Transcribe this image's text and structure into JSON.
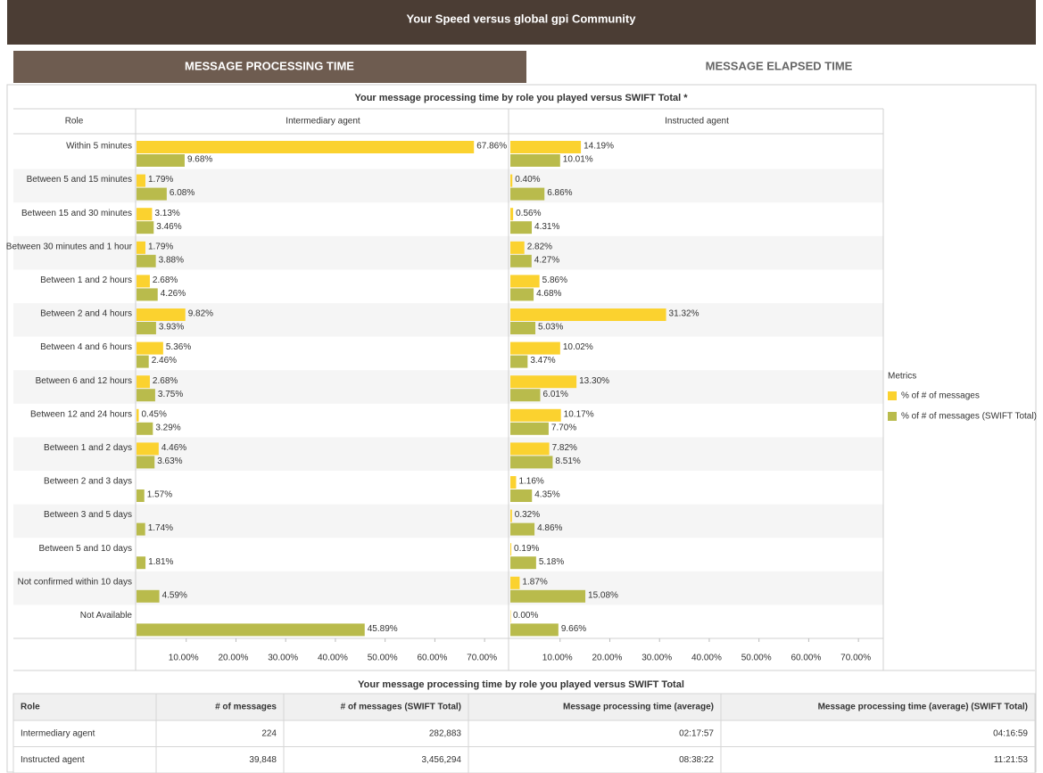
{
  "header": {
    "title": "Your Speed versus global gpi Community"
  },
  "tabs": [
    "MESSAGE PROCESSING TIME",
    "MESSAGE ELAPSED TIME"
  ],
  "chart_data": {
    "type": "bar",
    "orientation": "horizontal",
    "title": "Your message processing time by role you played versus SWIFT Total *",
    "category_label": "Role",
    "categories": [
      "Within 5 minutes",
      "Between 5 and 15 minutes",
      "Between 15 and 30 minutes",
      "Between 30 minutes and 1 hour",
      "Between 1 and 2 hours",
      "Between 2 and 4 hours",
      "Between 4 and 6 hours",
      "Between 6 and 12 hours",
      "Between 12 and 24 hours",
      "Between 1 and 2 days",
      "Between 2 and 3 days",
      "Between 3 and 5 days",
      "Between 5 and 10 days",
      "Not confirmed within 10 days",
      "Not Available"
    ],
    "legend_title": "Metrics",
    "series": [
      {
        "name": "% of # of messages",
        "color": "#fbd22f"
      },
      {
        "name": "% of # of messages (SWIFT Total)",
        "color": "#b9bb4c"
      }
    ],
    "xlim": [
      0,
      75
    ],
    "xticks": [
      {
        "value": 10,
        "label": "10.00%"
      },
      {
        "value": 20,
        "label": "20.00%"
      },
      {
        "value": 30,
        "label": "30.00%"
      },
      {
        "value": 40,
        "label": "40.00%"
      },
      {
        "value": 50,
        "label": "50.00%"
      },
      {
        "value": 60,
        "label": "60.00%"
      },
      {
        "value": 70,
        "label": "70.00%"
      }
    ],
    "panels": [
      {
        "title": "Intermediary agent",
        "series": [
          {
            "values": [
              67.86,
              1.79,
              3.13,
              1.79,
              2.68,
              9.82,
              5.36,
              2.68,
              0.45,
              4.46,
              null,
              null,
              null,
              null,
              null
            ],
            "value_labels": [
              "67.86%",
              "1.79%",
              "3.13%",
              "1.79%",
              "2.68%",
              "9.82%",
              "5.36%",
              "2.68%",
              "0.45%",
              "4.46%",
              null,
              null,
              null,
              null,
              null
            ]
          },
          {
            "values": [
              9.68,
              6.08,
              3.46,
              3.88,
              4.26,
              3.93,
              2.46,
              3.75,
              3.29,
              3.63,
              1.57,
              1.74,
              1.81,
              4.59,
              45.89
            ],
            "value_labels": [
              "9.68%",
              "6.08%",
              "3.46%",
              "3.88%",
              "4.26%",
              "3.93%",
              "2.46%",
              "3.75%",
              "3.29%",
              "3.63%",
              "1.57%",
              "1.74%",
              "1.81%",
              "4.59%",
              "45.89%"
            ]
          }
        ]
      },
      {
        "title": "Instructed agent",
        "series": [
          {
            "values": [
              14.19,
              0.4,
              0.56,
              2.82,
              5.86,
              31.32,
              10.02,
              13.3,
              10.17,
              7.82,
              1.16,
              0.32,
              0.19,
              1.87,
              0.0
            ],
            "value_labels": [
              "14.19%",
              "0.40%",
              "0.56%",
              "2.82%",
              "5.86%",
              "31.32%",
              "10.02%",
              "13.30%",
              "10.17%",
              "7.82%",
              "1.16%",
              "0.32%",
              "0.19%",
              "1.87%",
              "0.00%"
            ]
          },
          {
            "values": [
              10.01,
              6.86,
              4.31,
              4.27,
              4.68,
              5.03,
              3.47,
              6.01,
              7.7,
              8.51,
              4.35,
              4.86,
              5.18,
              15.08,
              9.66
            ],
            "value_labels": [
              "10.01%",
              "6.86%",
              "4.31%",
              "4.27%",
              "4.68%",
              "5.03%",
              "3.47%",
              "6.01%",
              "7.70%",
              "8.51%",
              "4.35%",
              "4.86%",
              "5.18%",
              "15.08%",
              "9.66%"
            ]
          }
        ]
      }
    ]
  },
  "table": {
    "title": "Your message processing time by role you played versus SWIFT Total",
    "columns": [
      "Role",
      "# of messages",
      "# of messages (SWIFT Total)",
      "Message processing time (average)",
      "Message processing time (average) (SWIFT Total)"
    ],
    "rows": [
      [
        "Intermediary agent",
        "224",
        "282,883",
        "02:17:57",
        "04:16:59"
      ],
      [
        "Instructed agent",
        "39,848",
        "3,456,294",
        "08:38:22",
        "11:21:53"
      ]
    ]
  }
}
